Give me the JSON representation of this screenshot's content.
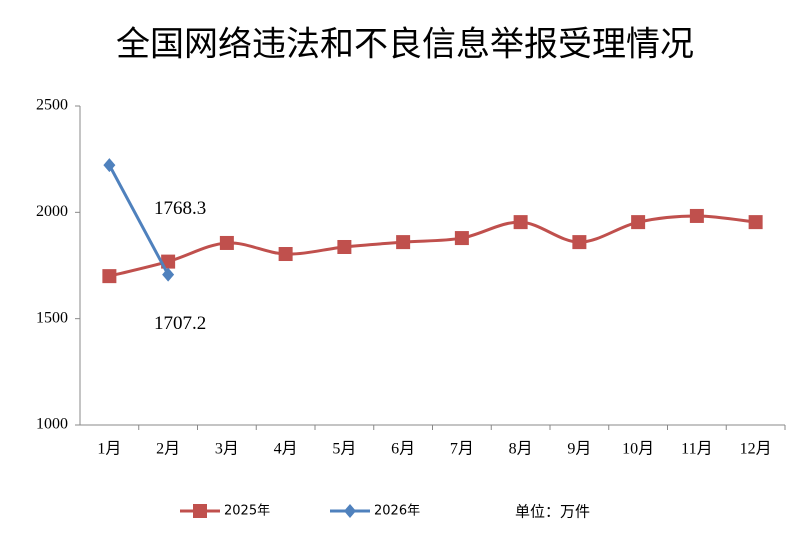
{
  "chart_data": {
    "type": "line",
    "title": "全国网络违法和不良信息举报受理情况",
    "categories": [
      "1月",
      "2月",
      "3月",
      "4月",
      "5月",
      "6月",
      "7月",
      "8月",
      "9月",
      "10月",
      "11月",
      "12月"
    ],
    "series": [
      {
        "name": "2025年",
        "color": "#c0504d",
        "marker": "square",
        "smooth": true,
        "values": [
          1700,
          1768.3,
          1856,
          1804,
          1837,
          1860,
          1879,
          1954,
          1860,
          1954,
          1983,
          1954
        ],
        "value_labels": [
          null,
          "1768.3",
          null,
          null,
          null,
          null,
          null,
          null,
          null,
          null,
          null,
          null
        ]
      },
      {
        "name": "2026年",
        "color": "#4f81bd",
        "marker": "diamond",
        "smooth": false,
        "values": [
          2222,
          1707.2,
          null,
          null,
          null,
          null,
          null,
          null,
          null,
          null,
          null,
          null
        ],
        "value_labels": [
          null,
          "1707.2",
          null,
          null,
          null,
          null,
          null,
          null,
          null,
          null,
          null,
          null
        ]
      }
    ],
    "ylim": [
      1000,
      2500
    ],
    "yticks": [
      1000,
      1500,
      2000,
      2500
    ],
    "unit": "单位：万件"
  }
}
